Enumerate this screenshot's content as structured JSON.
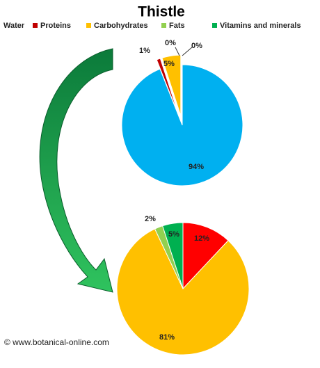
{
  "chart_data": [
    {
      "type": "pie",
      "title": "Thistle",
      "categories": [
        "Water",
        "Proteins",
        "Carbohydrates",
        "Fats",
        "Vitamins and minerals"
      ],
      "values": [
        94,
        1,
        5,
        0,
        0
      ],
      "value_labels": [
        "94%",
        "1%",
        "5%",
        "0%",
        "0%"
      ],
      "colors": [
        "#00b0f0",
        "#c00000",
        "#ffc000",
        "#92d050",
        "#00b050"
      ]
    },
    {
      "type": "pie",
      "values": [
        12,
        81,
        2,
        5
      ],
      "value_labels": [
        "12%",
        "81%",
        "2%",
        "5%"
      ],
      "colors": [
        "#ff0000",
        "#ffc000",
        "#92d050",
        "#00b050"
      ]
    }
  ],
  "watermark": "© www.botanical-online.com"
}
